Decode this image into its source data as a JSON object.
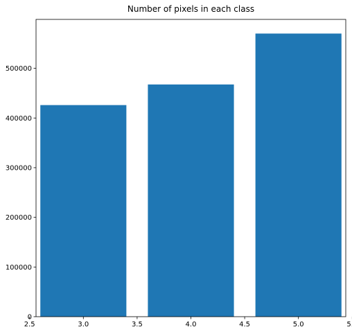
{
  "chart_data": {
    "type": "bar",
    "title": "Number of pixels in each class",
    "xlabel": "",
    "ylabel": "",
    "x": [
      3.0,
      4.0,
      5.0
    ],
    "values": [
      426000,
      467500,
      570000
    ],
    "bar_width": 0.8,
    "xlim": [
      2.56,
      5.44
    ],
    "ylim": [
      0,
      598500
    ],
    "xticks": [
      "2.5",
      "3.0",
      "3.5",
      "4.0",
      "4.5",
      "5.0",
      "5.5"
    ],
    "yticks": [
      "0",
      "100000",
      "200000",
      "300000",
      "400000",
      "500000"
    ],
    "grid": false,
    "bar_color": "#1f77b4"
  }
}
